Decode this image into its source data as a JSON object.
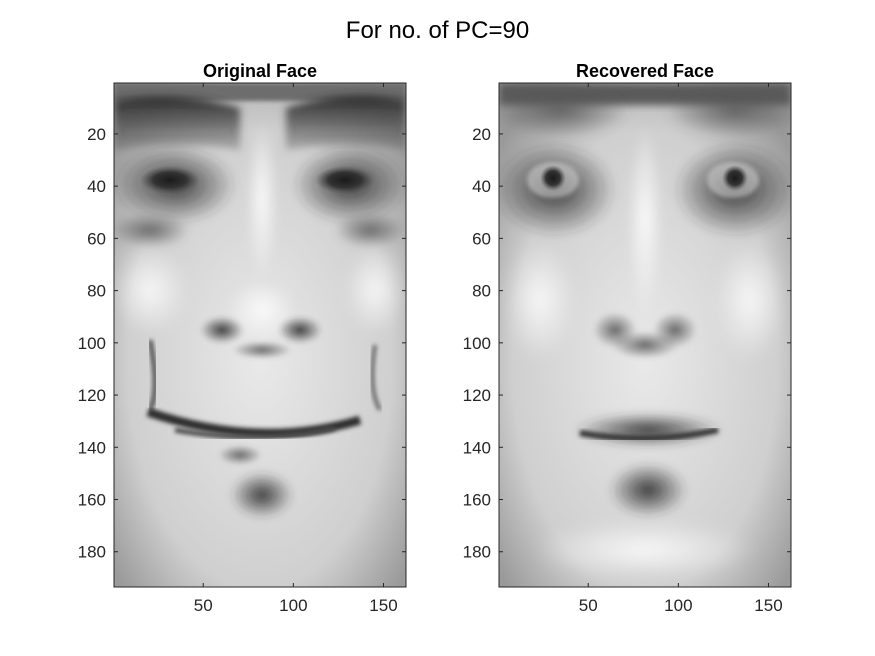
{
  "figure": {
    "title": "For no. of PC=90"
  },
  "chart_data": [
    {
      "type": "heatmap",
      "title": "Original Face",
      "colormap": "gray",
      "xlim": [
        0.5,
        162.5
      ],
      "ylim": [
        0.5,
        193.5
      ],
      "y_reversed": true,
      "xticks": [
        50,
        100,
        150
      ],
      "yticks": [
        20,
        40,
        60,
        80,
        100,
        120,
        140,
        160,
        180
      ],
      "grid": false,
      "content": "grayscale face image"
    },
    {
      "type": "heatmap",
      "title": "Recovered Face",
      "colormap": "gray",
      "xlim": [
        0.5,
        162.5
      ],
      "ylim": [
        0.5,
        193.5
      ],
      "y_reversed": true,
      "xticks": [
        50,
        100,
        150
      ],
      "yticks": [
        20,
        40,
        60,
        80,
        100,
        120,
        140,
        160,
        180
      ],
      "grid": false,
      "content": "grayscale face image reconstructed from 90 principal components"
    }
  ]
}
